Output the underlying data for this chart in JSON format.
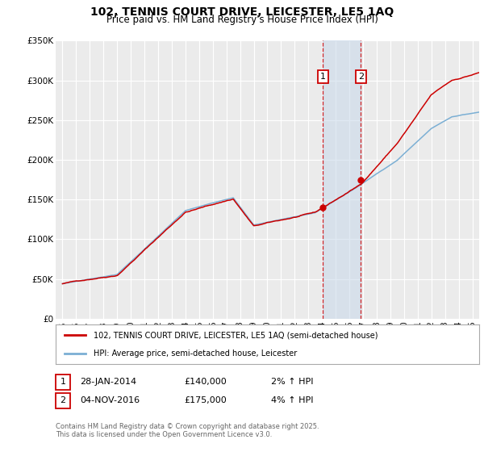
{
  "title": "102, TENNIS COURT DRIVE, LEICESTER, LE5 1AQ",
  "subtitle": "Price paid vs. HM Land Registry's House Price Index (HPI)",
  "title_fontsize": 10,
  "subtitle_fontsize": 8.5,
  "background_color": "#ffffff",
  "plot_bg_color": "#ebebeb",
  "grid_color": "#ffffff",
  "red_color": "#cc0000",
  "blue_color": "#7bafd4",
  "shade_color": "#c8d8ea",
  "purchase1": {
    "date_num": 2014.07,
    "price": 140000,
    "label": "1",
    "date_str": "28-JAN-2014",
    "hpi_pct": "2%"
  },
  "purchase2": {
    "date_num": 2016.84,
    "price": 175000,
    "label": "2",
    "date_str": "04-NOV-2016",
    "hpi_pct": "4%"
  },
  "xmin": 1994.5,
  "xmax": 2025.5,
  "ymin": 0,
  "ymax": 350000,
  "yticks": [
    0,
    50000,
    100000,
    150000,
    200000,
    250000,
    300000,
    350000
  ],
  "ytick_labels": [
    "£0",
    "£50K",
    "£100K",
    "£150K",
    "£200K",
    "£250K",
    "£300K",
    "£350K"
  ],
  "xticks": [
    1995,
    1996,
    1997,
    1998,
    1999,
    2000,
    2001,
    2002,
    2003,
    2004,
    2005,
    2006,
    2007,
    2008,
    2009,
    2010,
    2011,
    2012,
    2013,
    2014,
    2015,
    2016,
    2017,
    2018,
    2019,
    2020,
    2021,
    2022,
    2023,
    2024,
    2025
  ],
  "legend_label_red": "102, TENNIS COURT DRIVE, LEICESTER, LE5 1AQ (semi-detached house)",
  "legend_label_blue": "HPI: Average price, semi-detached house, Leicester",
  "footer": "Contains HM Land Registry data © Crown copyright and database right 2025.\nThis data is licensed under the Open Government Licence v3.0."
}
